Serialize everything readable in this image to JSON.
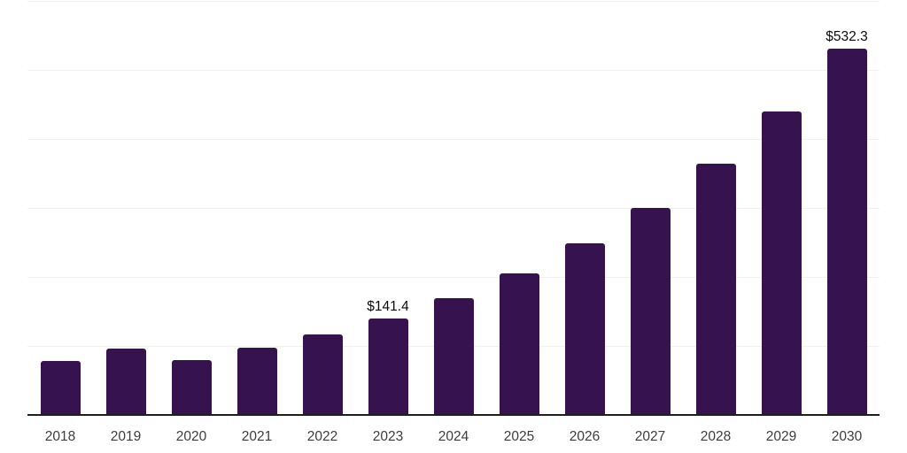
{
  "chart_data": {
    "type": "bar",
    "title": "",
    "xlabel": "",
    "ylabel": "",
    "categories": [
      "2018",
      "2019",
      "2020",
      "2021",
      "2022",
      "2023",
      "2024",
      "2025",
      "2026",
      "2027",
      "2028",
      "2029",
      "2030"
    ],
    "values": [
      79.3,
      96.9,
      81.3,
      98.1,
      118.6,
      141.4,
      170.9,
      206.6,
      249.7,
      301.8,
      364.8,
      440.9,
      532.3
    ],
    "value_labels": [
      "",
      "",
      "",
      "",
      "",
      "$141.4",
      "",
      "",
      "",
      "",
      "",
      "",
      "$532.3"
    ],
    "ylim": [
      0,
      600
    ],
    "gridline_values": [
      100,
      200,
      300,
      400,
      500,
      600
    ],
    "grid": "horizontal-only",
    "legend_position": "none",
    "y_axis_tick_labels_visible": false,
    "colors": {
      "bar": "#36134e",
      "gridline": "#f2f2f2",
      "axis_line": "#1f1f1f",
      "tick_label": "#3d3d3d",
      "value_label": "#0a0a0a",
      "background": "#ffffff"
    }
  }
}
